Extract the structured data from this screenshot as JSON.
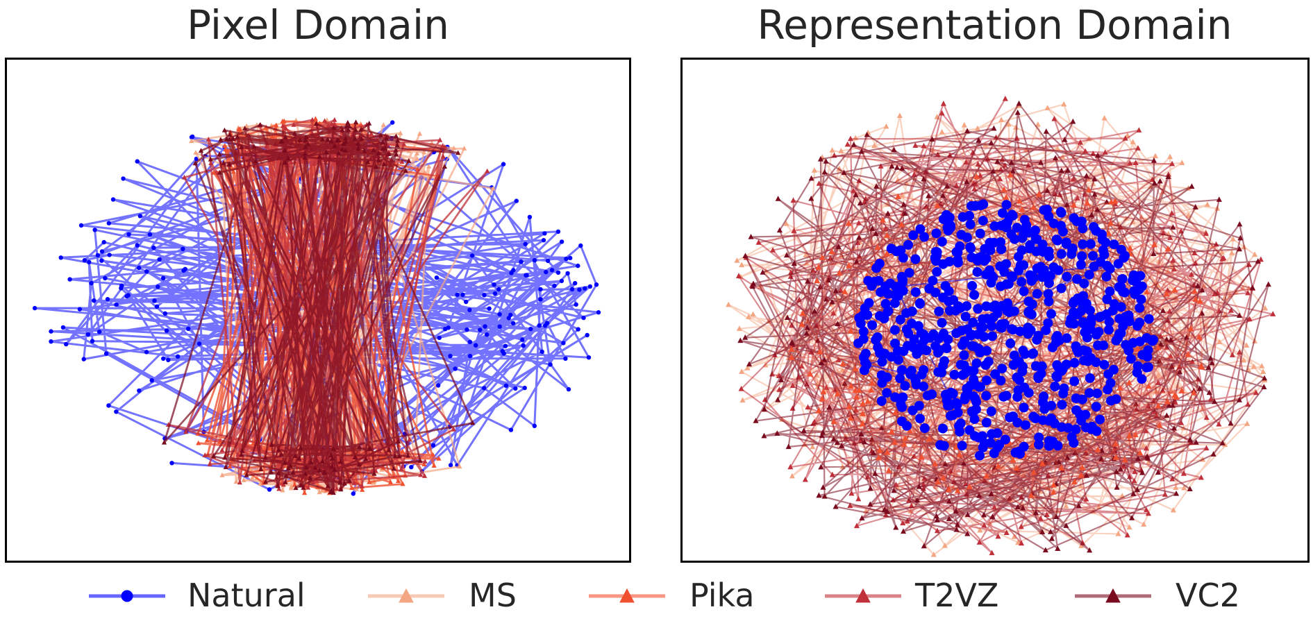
{
  "chart_data": [
    {
      "type": "scatter",
      "title": "Pixel Domain",
      "xlabel": "",
      "ylabel": "",
      "axes_ticks": false,
      "grid": false,
      "points_connected": true,
      "series": [
        {
          "name": "Natural",
          "color": "#0000ff",
          "marker": "circle",
          "distribution": "elongated ellipse, heaviest at left and right ends"
        },
        {
          "name": "MS",
          "color": "#f4a582",
          "marker": "triangle",
          "distribution": "interleaved vertical streaks across the center"
        },
        {
          "name": "Pika",
          "color": "#f05030",
          "marker": "triangle",
          "distribution": "interleaved vertical streaks, loops at left/right"
        },
        {
          "name": "T2VZ",
          "color": "#c0303a",
          "marker": "triangle",
          "distribution": "interleaved vertical streaks across the center"
        },
        {
          "name": "VC2",
          "color": "#7a0a1e",
          "marker": "triangle",
          "distribution": "interleaved vertical streaks across the center"
        }
      ]
    },
    {
      "type": "scatter",
      "title": "Representation Domain",
      "xlabel": "",
      "ylabel": "",
      "axes_ticks": false,
      "grid": false,
      "points_connected": true,
      "series": [
        {
          "name": "Natural",
          "color": "#0000ff",
          "marker": "circle",
          "distribution": "dense central cluster"
        },
        {
          "name": "MS",
          "color": "#f4a582",
          "marker": "triangle",
          "distribution": "outer ring"
        },
        {
          "name": "Pika",
          "color": "#f05030",
          "marker": "triangle",
          "distribution": "inner ring around central cluster"
        },
        {
          "name": "T2VZ",
          "color": "#c0303a",
          "marker": "triangle",
          "distribution": "outer ring"
        },
        {
          "name": "VC2",
          "color": "#7a0a1e",
          "marker": "triangle",
          "distribution": "outer ring"
        }
      ]
    }
  ],
  "legend": {
    "placement": "bottom",
    "items": [
      {
        "label": "Natural",
        "color": "#0000ff",
        "marker": "circle"
      },
      {
        "label": "MS",
        "color": "#f4a582",
        "marker": "triangle"
      },
      {
        "label": "Pika",
        "color": "#f05030",
        "marker": "triangle"
      },
      {
        "label": "T2VZ",
        "color": "#c0303a",
        "marker": "triangle"
      },
      {
        "label": "VC2",
        "color": "#7a0a1e",
        "marker": "triangle"
      }
    ]
  }
}
